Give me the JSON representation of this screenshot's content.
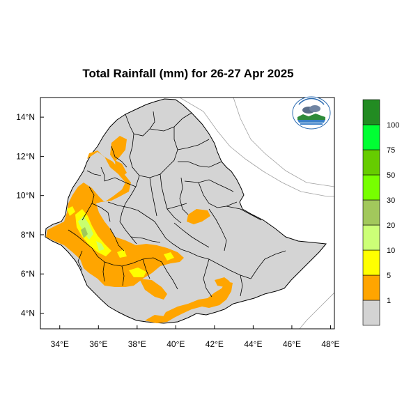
{
  "title": "Total Rainfall (mm) for 26-27 Apr 2025",
  "map": {
    "lon_range": [
      33,
      48.2
    ],
    "lat_range": [
      3.2,
      15
    ],
    "x_ticks": [
      {
        "value": 34,
        "label": "34°E"
      },
      {
        "value": 36,
        "label": "36°E"
      },
      {
        "value": 38,
        "label": "38°E"
      },
      {
        "value": 40,
        "label": "40°E"
      },
      {
        "value": 42,
        "label": "42°E"
      },
      {
        "value": 44,
        "label": "44°E"
      },
      {
        "value": 46,
        "label": "46°E"
      },
      {
        "value": 48,
        "label": "48°E"
      }
    ],
    "y_ticks": [
      {
        "value": 14,
        "label": "14°N"
      },
      {
        "value": 12,
        "label": "12°N"
      },
      {
        "value": 10,
        "label": "10°N"
      },
      {
        "value": 8,
        "label": "8°N"
      },
      {
        "value": 6,
        "label": "6°N"
      },
      {
        "value": 4,
        "label": "4°N"
      }
    ],
    "colors": {
      "land": "#d4d4d4",
      "border": "#000000",
      "outside_lines": "#999999",
      "rain_1": "#ffa500",
      "rain_5": "#ffff00",
      "rain_10": "#c8ff6e",
      "rain_20": "#a0c85a"
    }
  },
  "legend": {
    "bins": [
      {
        "color": "#d3d3d3",
        "label": "1"
      },
      {
        "color": "#ffa500",
        "label": "5"
      },
      {
        "color": "#ffff00",
        "label": "10"
      },
      {
        "color": "#ccff77",
        "label": "20"
      },
      {
        "color": "#a2c85c",
        "label": "30"
      },
      {
        "color": "#77ff00",
        "label": "50"
      },
      {
        "color": "#66cc00",
        "label": "75"
      },
      {
        "color": "#00ff33",
        "label": "100"
      },
      {
        "color": "#228b22",
        "label": ""
      }
    ]
  },
  "logo": {
    "name": "ethiopian-meteorology-institute-logo",
    "text": "Ethiopian Meteorology Institute"
  }
}
